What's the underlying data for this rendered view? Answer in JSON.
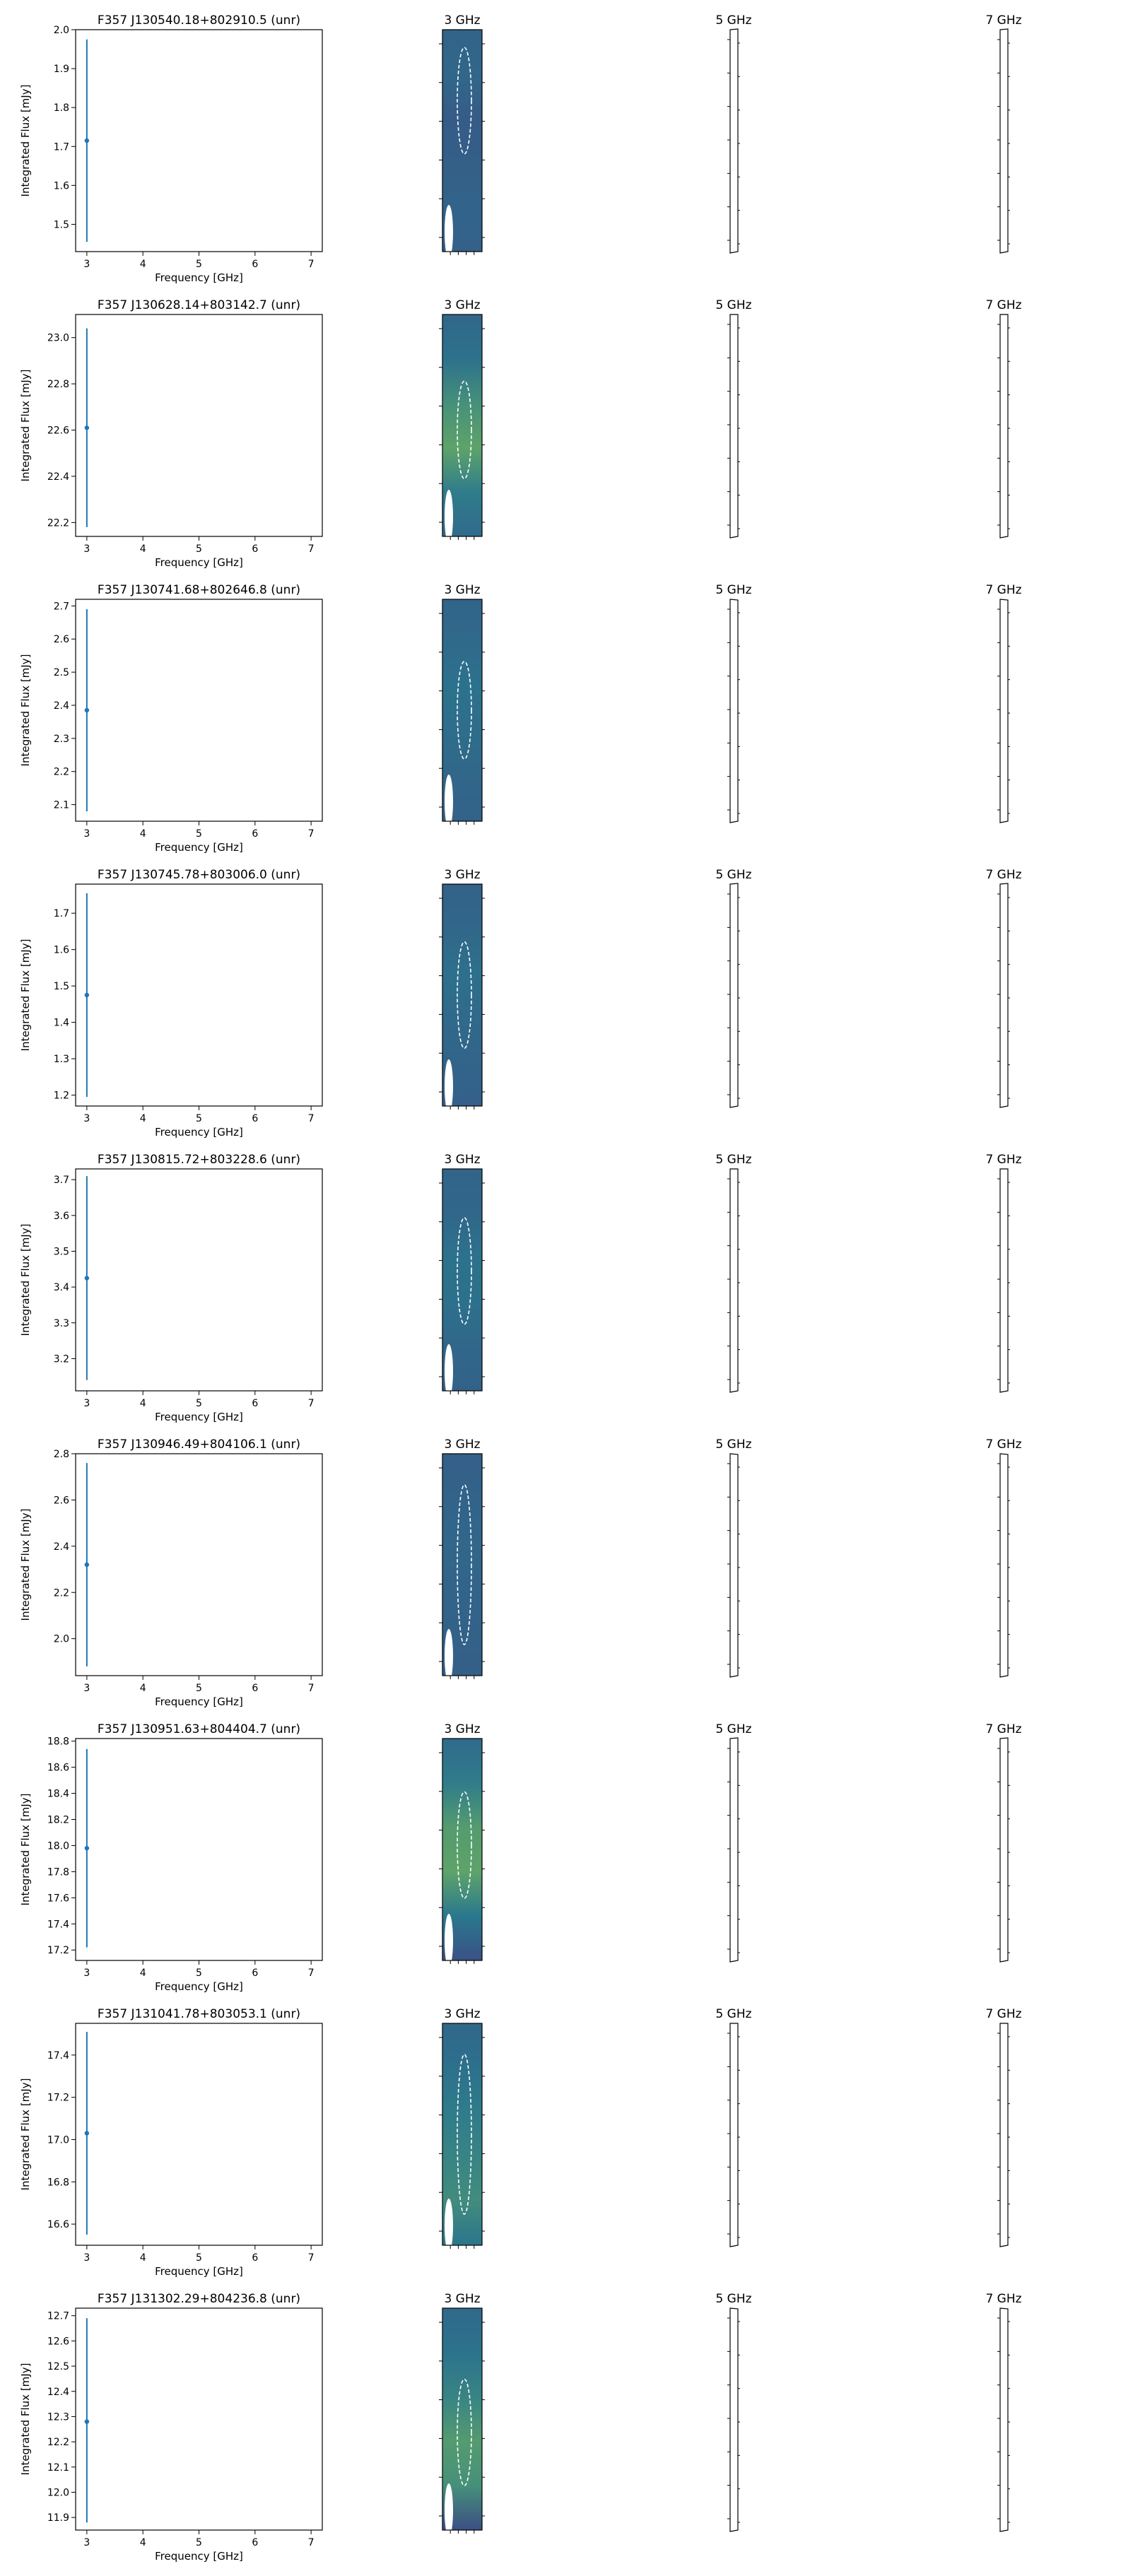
{
  "figure": {
    "column_titles": [
      "3 GHz",
      "5 GHz",
      "7 GHz"
    ],
    "xlabel": "Frequency [GHz]",
    "ylabel": "Integrated Flux [mJy]"
  },
  "colors": {
    "point": "#1f77b4",
    "axes": "#000000",
    "ellipse": "#ffffff",
    "map_low": "#46327e",
    "map_mid": "#2a788e",
    "map_high": "#a0da39"
  },
  "chart_data": [
    {
      "type": "scatter",
      "title": "F357 J130540.18+802910.5 (unr)",
      "xlabel": "Frequency [GHz]",
      "ylabel": "Integrated Flux [mJy]",
      "xlim": [
        2.8,
        7.2
      ],
      "ylim": [
        1.43,
        2.0
      ],
      "xticks": [
        3,
        4,
        5,
        6,
        7
      ],
      "yticks": [
        1.5,
        1.6,
        1.7,
        1.8,
        1.9,
        2.0
      ],
      "x": [
        3
      ],
      "y": [
        1.715
      ],
      "yerr_low": [
        1.455
      ],
      "yerr_high": [
        1.975
      ],
      "map": {
        "stops": [
          0.35,
          0.38,
          0.3,
          0.32,
          0.36,
          0.33
        ],
        "ellipse_cy": 0.32,
        "ellipse_ry": 0.24
      }
    },
    {
      "type": "scatter",
      "title": "F357 J130628.14+803142.7 (unr)",
      "xlabel": "Frequency [GHz]",
      "ylabel": "Integrated Flux [mJy]",
      "xlim": [
        2.8,
        7.2
      ],
      "ylim": [
        22.14,
        23.1
      ],
      "xticks": [
        3,
        4,
        5,
        6,
        7
      ],
      "yticks": [
        22.2,
        22.4,
        22.6,
        22.8,
        23.0
      ],
      "x": [
        3
      ],
      "y": [
        22.61
      ],
      "yerr_low": [
        22.18
      ],
      "yerr_high": [
        23.04
      ],
      "map": {
        "stops": [
          0.38,
          0.45,
          0.62,
          0.72,
          0.52,
          0.4
        ],
        "ellipse_cy": 0.52,
        "ellipse_ry": 0.22
      }
    },
    {
      "type": "scatter",
      "title": "F357 J130741.68+802646.8 (unr)",
      "xlabel": "Frequency [GHz]",
      "ylabel": "Integrated Flux [mJy]",
      "xlim": [
        2.8,
        7.2
      ],
      "ylim": [
        2.05,
        2.72
      ],
      "xticks": [
        3,
        4,
        5,
        6,
        7
      ],
      "yticks": [
        2.1,
        2.2,
        2.3,
        2.4,
        2.5,
        2.6,
        2.7
      ],
      "x": [
        3
      ],
      "y": [
        2.385
      ],
      "yerr_low": [
        2.08
      ],
      "yerr_high": [
        2.69
      ],
      "map": {
        "stops": [
          0.36,
          0.4,
          0.46,
          0.42,
          0.38,
          0.34
        ],
        "ellipse_cy": 0.5,
        "ellipse_ry": 0.22
      }
    },
    {
      "type": "scatter",
      "title": "F357 J130745.78+803006.0 (unr)",
      "xlabel": "Frequency [GHz]",
      "ylabel": "Integrated Flux [mJy]",
      "xlim": [
        2.8,
        7.2
      ],
      "ylim": [
        1.17,
        1.78
      ],
      "xticks": [
        3,
        4,
        5,
        6,
        7
      ],
      "yticks": [
        1.2,
        1.3,
        1.4,
        1.5,
        1.6,
        1.7
      ],
      "x": [
        3
      ],
      "y": [
        1.475
      ],
      "yerr_low": [
        1.195
      ],
      "yerr_high": [
        1.755
      ],
      "map": {
        "stops": [
          0.34,
          0.38,
          0.44,
          0.4,
          0.36,
          0.33
        ],
        "ellipse_cy": 0.5,
        "ellipse_ry": 0.24
      }
    },
    {
      "type": "scatter",
      "title": "F357 J130815.72+803228.6 (unr)",
      "xlabel": "Frequency [GHz]",
      "ylabel": "Integrated Flux [mJy]",
      "xlim": [
        2.8,
        7.2
      ],
      "ylim": [
        3.11,
        3.73
      ],
      "xticks": [
        3,
        4,
        5,
        6,
        7
      ],
      "yticks": [
        3.2,
        3.3,
        3.4,
        3.5,
        3.6,
        3.7
      ],
      "x": [
        3
      ],
      "y": [
        3.425
      ],
      "yerr_low": [
        3.14
      ],
      "yerr_high": [
        3.71
      ],
      "map": {
        "stops": [
          0.36,
          0.38,
          0.46,
          0.44,
          0.38,
          0.34
        ],
        "ellipse_cy": 0.46,
        "ellipse_ry": 0.24
      }
    },
    {
      "type": "scatter",
      "title": "F357 J130946.49+804106.1 (unr)",
      "xlabel": "Frequency [GHz]",
      "ylabel": "Integrated Flux [mJy]",
      "xlim": [
        2.8,
        7.2
      ],
      "ylim": [
        1.84,
        2.8
      ],
      "xticks": [
        3,
        4,
        5,
        6,
        7
      ],
      "yticks": [
        2.0,
        2.2,
        2.4,
        2.6,
        2.8
      ],
      "x": [
        3
      ],
      "y": [
        2.32
      ],
      "yerr_low": [
        1.88
      ],
      "yerr_high": [
        2.76
      ],
      "map": {
        "stops": [
          0.33,
          0.35,
          0.38,
          0.36,
          0.34,
          0.32
        ],
        "ellipse_cy": 0.5,
        "ellipse_ry": 0.36
      }
    },
    {
      "type": "scatter",
      "title": "F357 J130951.63+804404.7 (unr)",
      "xlabel": "Frequency [GHz]",
      "ylabel": "Integrated Flux [mJy]",
      "xlim": [
        2.8,
        7.2
      ],
      "ylim": [
        17.12,
        18.82
      ],
      "xticks": [
        3,
        4,
        5,
        6,
        7
      ],
      "yticks": [
        17.2,
        17.4,
        17.6,
        17.8,
        18.0,
        18.2,
        18.4,
        18.6,
        18.8
      ],
      "x": [
        3
      ],
      "y": [
        17.98
      ],
      "yerr_low": [
        17.22
      ],
      "yerr_high": [
        18.74
      ],
      "map": {
        "stops": [
          0.4,
          0.52,
          0.68,
          0.72,
          0.5,
          0.22
        ],
        "ellipse_cy": 0.48,
        "ellipse_ry": 0.24
      }
    },
    {
      "type": "scatter",
      "title": "F357 J131041.78+803053.1 (unr)",
      "xlabel": "Frequency [GHz]",
      "ylabel": "Integrated Flux [mJy]",
      "xlim": [
        2.8,
        7.2
      ],
      "ylim": [
        16.5,
        17.55
      ],
      "xticks": [
        3,
        4,
        5,
        6,
        7
      ],
      "yticks": [
        16.6,
        16.8,
        17.0,
        17.2,
        17.4
      ],
      "x": [
        3
      ],
      "y": [
        17.03
      ],
      "yerr_low": [
        16.55
      ],
      "yerr_high": [
        17.51
      ],
      "map": {
        "stops": [
          0.38,
          0.44,
          0.52,
          0.56,
          0.6,
          0.48
        ],
        "ellipse_cy": 0.5,
        "ellipse_ry": 0.36
      }
    },
    {
      "type": "scatter",
      "title": "F357 J131302.29+804236.8 (unr)",
      "xlabel": "Frequency [GHz]",
      "ylabel": "Integrated Flux [mJy]",
      "xlim": [
        2.8,
        7.2
      ],
      "ylim": [
        11.85,
        12.73
      ],
      "xticks": [
        3,
        4,
        5,
        6,
        7
      ],
      "yticks": [
        11.9,
        12.0,
        12.1,
        12.2,
        12.3,
        12.4,
        12.5,
        12.6,
        12.7
      ],
      "x": [
        3
      ],
      "y": [
        12.28
      ],
      "yerr_low": [
        11.88
      ],
      "yerr_high": [
        12.69
      ],
      "map": {
        "stops": [
          0.4,
          0.46,
          0.56,
          0.68,
          0.62,
          0.2
        ],
        "ellipse_cy": 0.56,
        "ellipse_ry": 0.24
      }
    }
  ]
}
